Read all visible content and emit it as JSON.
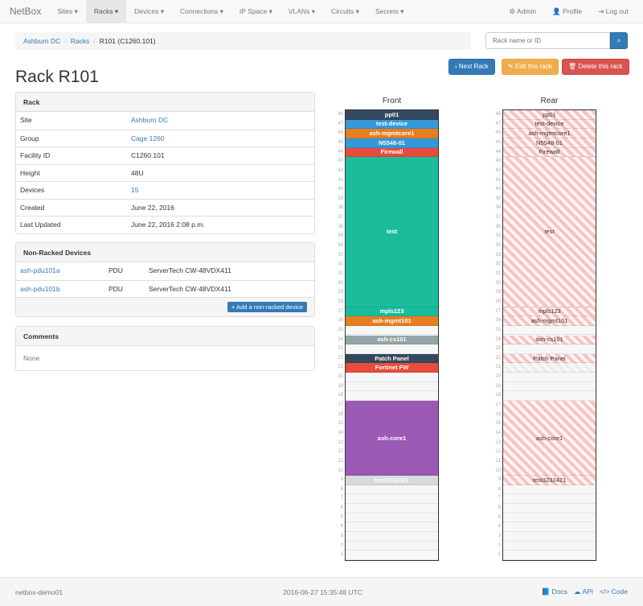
{
  "nav": {
    "brand": "NetBox",
    "items": [
      "Sites ▾",
      "Racks ▾",
      "Devices ▾",
      "Connections ▾",
      "IP Space ▾",
      "VLANs ▾",
      "Circuits ▾",
      "Secrets ▾"
    ],
    "active": 1,
    "right": [
      "⚙ Admin",
      "👤 Profile",
      "⇥ Log out"
    ]
  },
  "breadcrumb": [
    "Ashburn DC",
    "Racks",
    "R101 (C1260.101)"
  ],
  "search": {
    "placeholder": "Rack name or ID",
    "icon": "search-icon"
  },
  "buttons": {
    "next": "› Next Rack",
    "edit": "✎ Edit this rack",
    "delete": "🗑 Delete this rack"
  },
  "title": "Rack R101",
  "rack_panel": {
    "heading": "Rack",
    "rows": [
      {
        "k": "Site",
        "v": "Ashburn DC",
        "link": true
      },
      {
        "k": "Group",
        "v": "Cage 1260",
        "link": true
      },
      {
        "k": "Facility ID",
        "v": "C1260.101"
      },
      {
        "k": "Height",
        "v": "48U"
      },
      {
        "k": "Devices",
        "v": "15",
        "link": true
      },
      {
        "k": "Created",
        "v": "June 22, 2016"
      },
      {
        "k": "Last Updated",
        "v": "June 22, 2016 2:08 p.m."
      }
    ]
  },
  "nonracked": {
    "heading": "Non-Racked Devices",
    "rows": [
      [
        "ash-pdu101a",
        "PDU",
        "ServerTech CW-48VDX411"
      ],
      [
        "ash-pdu101b",
        "PDU",
        "ServerTech CW-48VDX411"
      ]
    ],
    "add": "+ Add a non-racked device"
  },
  "comments": {
    "heading": "Comments",
    "body": "None"
  },
  "elevation": {
    "front_label": "Front",
    "rear_label": "Rear",
    "units": 48,
    "front": [
      {
        "name": "pp01",
        "pos": 48,
        "h": 1,
        "color": "#34495e"
      },
      {
        "name": "test-device",
        "pos": 47,
        "h": 1,
        "color": "#3498db"
      },
      {
        "name": "ash-mgmtcore1",
        "pos": 46,
        "h": 1,
        "color": "#e67e22"
      },
      {
        "name": "N5548-01",
        "pos": 45,
        "h": 1,
        "color": "#3498db"
      },
      {
        "name": "Firewall",
        "pos": 44,
        "h": 1,
        "color": "#e74c3c"
      },
      {
        "name": "test",
        "pos": 28,
        "h": 16,
        "color": "#1abc9c"
      },
      {
        "name": "mpls123",
        "pos": 27,
        "h": 1,
        "color": "#1abc9c"
      },
      {
        "name": "ash-mgmt101",
        "pos": 26,
        "h": 1,
        "color": "#e67e22"
      },
      {
        "name": "ash-cs101",
        "pos": 24,
        "h": 1,
        "color": "#95a5a6"
      },
      {
        "name": "Patch Panel",
        "pos": 22,
        "h": 1,
        "color": "#34495e"
      },
      {
        "name": "Fortinet FW",
        "pos": 21,
        "h": 1,
        "color": "#e74c3c"
      },
      {
        "name": "ash-core1",
        "pos": 10,
        "h": 8,
        "color": "#9b59b6"
      },
      {
        "name": "test3232421",
        "pos": 9,
        "h": 1,
        "color": "#d5dbdf"
      }
    ],
    "rear": [
      {
        "name": "pp01",
        "pos": 48,
        "h": 1
      },
      {
        "name": "test-device",
        "pos": 47,
        "h": 1
      },
      {
        "name": "ash-mgmtcore1",
        "pos": 46,
        "h": 1
      },
      {
        "name": "N5548-01",
        "pos": 45,
        "h": 1
      },
      {
        "name": "Firewall",
        "pos": 44,
        "h": 1
      },
      {
        "name": "test",
        "pos": 28,
        "h": 16
      },
      {
        "name": "mpls123",
        "pos": 27,
        "h": 1
      },
      {
        "name": "ash-mgmt101",
        "pos": 26,
        "h": 1
      },
      {
        "name": "ash-cs101",
        "pos": 24,
        "h": 1
      },
      {
        "name": "Patch Panel",
        "pos": 22,
        "h": 1
      },
      {
        "name": "",
        "pos": 21,
        "h": 1,
        "faint": true
      },
      {
        "name": "ash-core1",
        "pos": 10,
        "h": 8
      },
      {
        "name": "test3232421",
        "pos": 9,
        "h": 1
      }
    ]
  },
  "footer": {
    "host": "netbox-demo01",
    "time": "2016-06-27 15:35:48 UTC",
    "links": [
      "📘 Docs",
      "☁ API",
      "</> Code"
    ]
  }
}
